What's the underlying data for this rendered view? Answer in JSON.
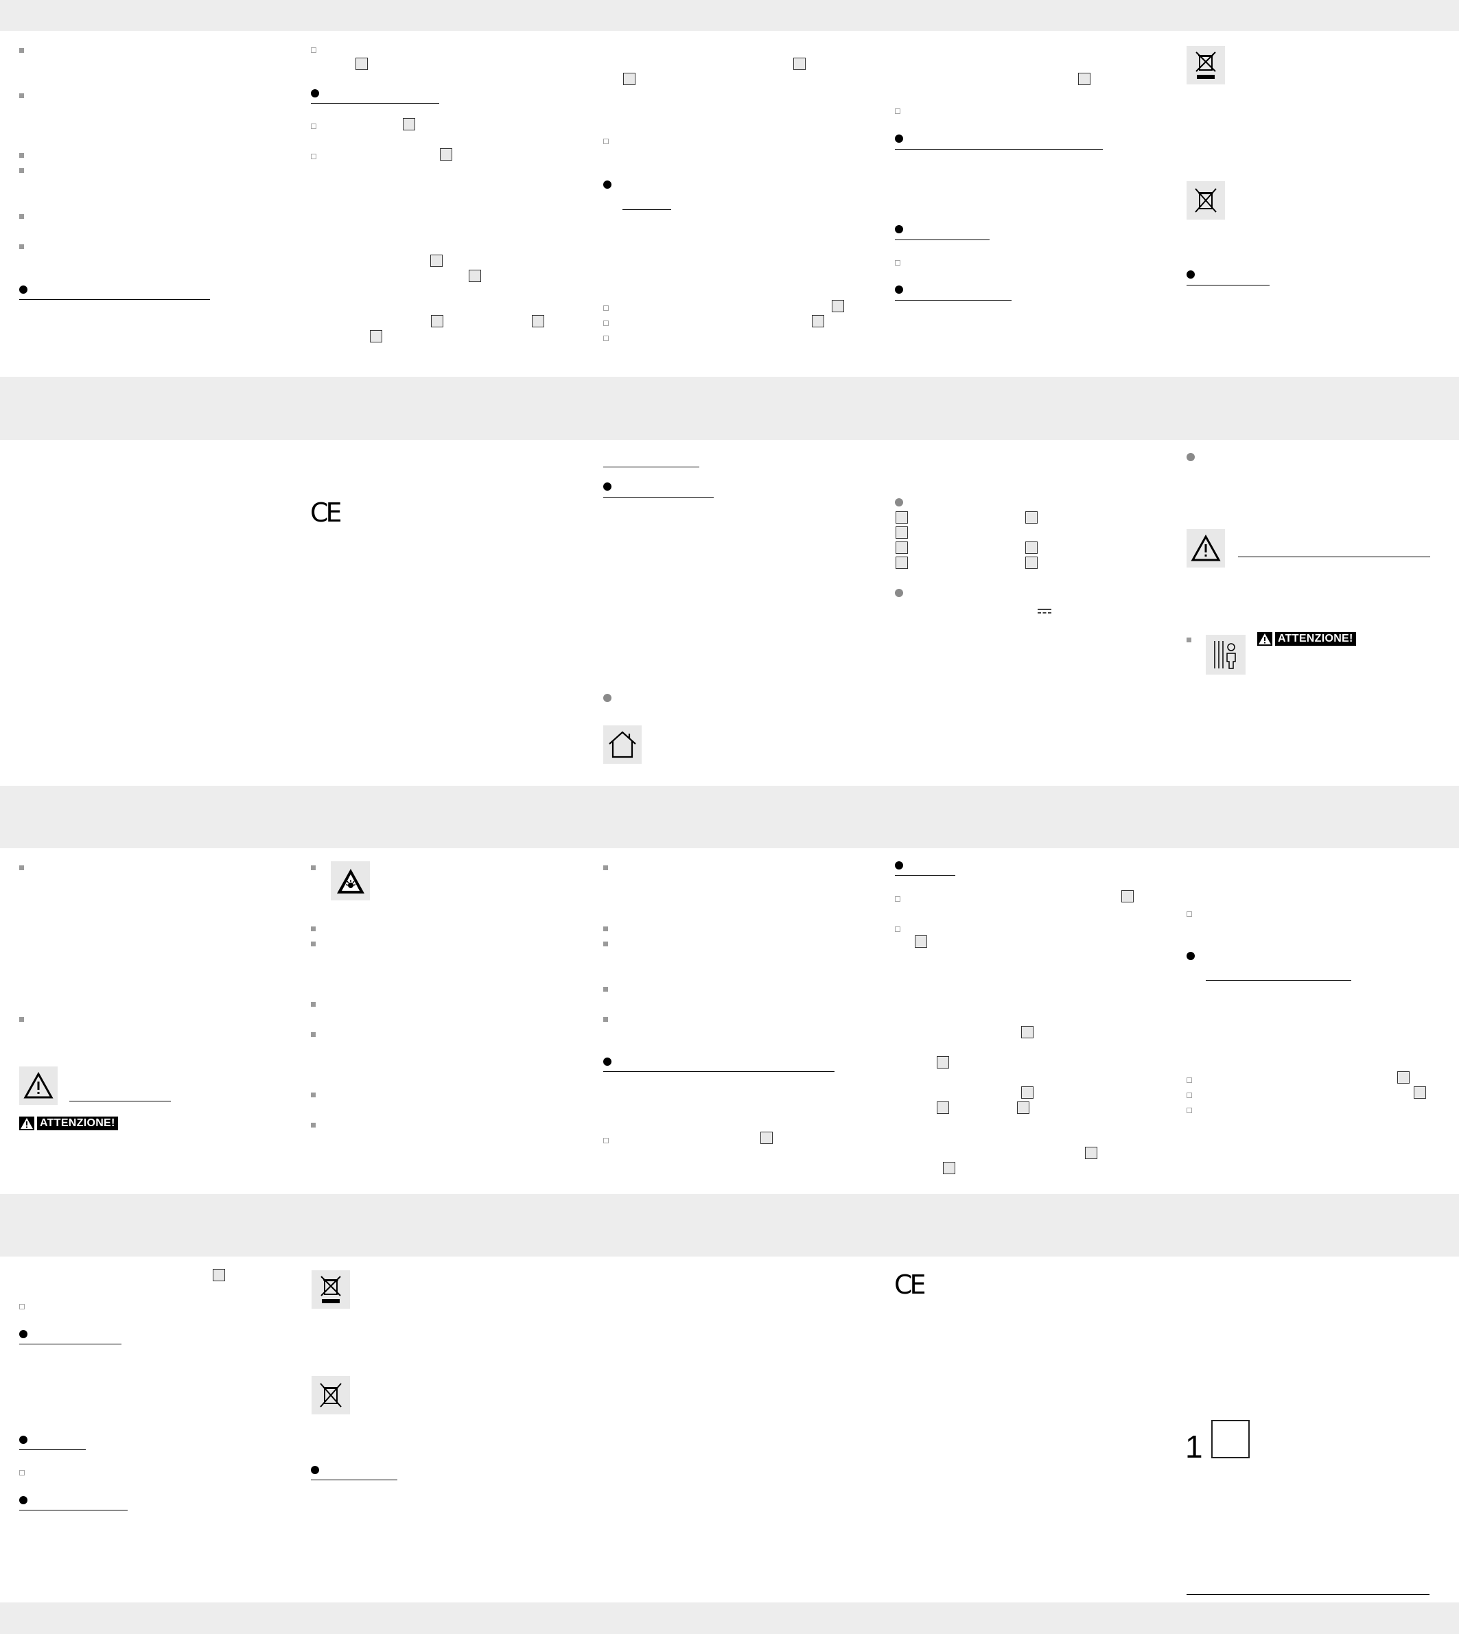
{
  "warning_label": "ATTENZIONE!",
  "ce_mark": "CE",
  "page_number": "1",
  "colors": {
    "page_gap": "#ededed",
    "band": "#ffffff",
    "bullet_gray": "#9a9a9a",
    "marker_black": "#000000",
    "icon_tile": "#e8e8e8"
  },
  "icons": [
    "weee-bin-bar-icon",
    "weee-bin-icon",
    "warning-triangle-icon",
    "child-hazard-icon",
    "house-icon",
    "explosion-warning-icon",
    "ce-mark"
  ]
}
